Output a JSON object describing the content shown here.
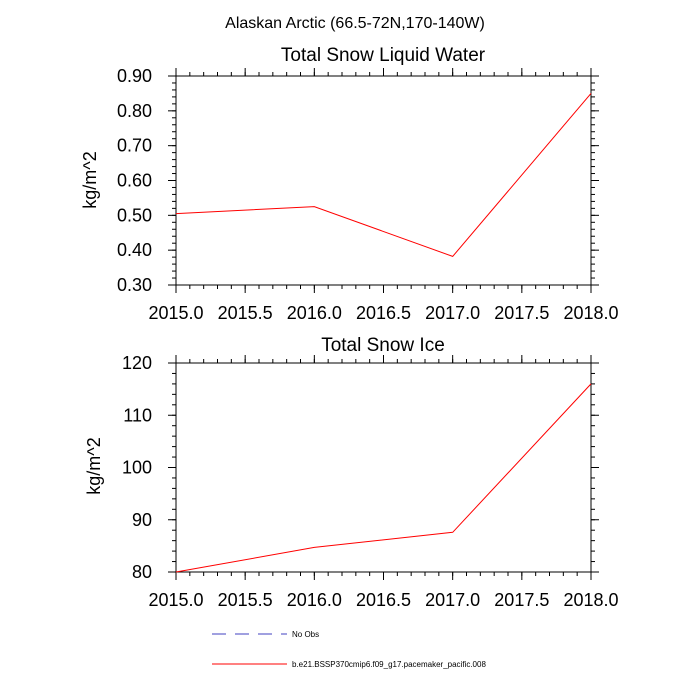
{
  "suptitle": "Alaskan Arctic (66.5-72N,170-140W)",
  "chart_data": [
    {
      "type": "line",
      "title": "Total Snow Liquid Water",
      "xlabel": "",
      "ylabel": "kg/m^2",
      "xlim": [
        2015.0,
        2018.0
      ],
      "ylim": [
        0.3,
        0.9
      ],
      "x_ticks": [
        "2015.0",
        "2015.5",
        "2016.0",
        "2016.5",
        "2017.0",
        "2017.5",
        "2018.0"
      ],
      "y_ticks": [
        "0.30",
        "0.40",
        "0.50",
        "0.60",
        "0.70",
        "0.80",
        "0.90"
      ],
      "x": [
        2015.0,
        2016.0,
        2017.0,
        2018.0
      ],
      "series": [
        {
          "name": "b.e21.BSSP370cmip6.f09_g17.pacemaker_pacific.008",
          "color": "#ff0000",
          "values": [
            0.505,
            0.525,
            0.382,
            0.85
          ]
        }
      ]
    },
    {
      "type": "line",
      "title": "Total Snow Ice",
      "xlabel": "",
      "ylabel": "kg/m^2",
      "xlim": [
        2015.0,
        2018.0
      ],
      "ylim": [
        80,
        120
      ],
      "x_ticks": [
        "2015.0",
        "2015.5",
        "2016.0",
        "2016.5",
        "2017.0",
        "2017.5",
        "2018.0"
      ],
      "y_ticks": [
        "80",
        "90",
        "100",
        "110",
        "120"
      ],
      "x": [
        2015.0,
        2016.0,
        2017.0,
        2018.0
      ],
      "series": [
        {
          "name": "b.e21.BSSP370cmip6.f09_g17.pacemaker_pacific.008",
          "color": "#ff0000",
          "values": [
            80.0,
            84.7,
            87.6,
            116.0
          ]
        }
      ]
    }
  ],
  "legend": [
    {
      "label": "No Obs",
      "color": "#4040c0",
      "style": "dashed"
    },
    {
      "label": "b.e21.BSSP370cmip6.f09_g17.pacemaker_pacific.008",
      "color": "#ff0000",
      "style": "solid"
    }
  ]
}
